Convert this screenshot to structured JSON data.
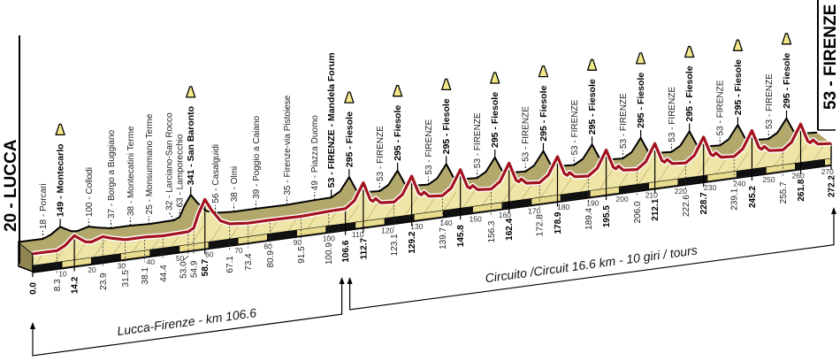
{
  "chart_data": {
    "type": "area",
    "title": "",
    "start_label": "20 - LUCCA",
    "finish_label": "53 - FIRENZE",
    "x_range": [
      0,
      272.2
    ],
    "x_unit": "km",
    "y_unit": "m",
    "grid": false,
    "tick_step": 10,
    "colors": {
      "ridge": "#b3a86c",
      "face": "#efe5a6",
      "route": "#a3121d",
      "band_dark": "#111111",
      "band_light": "#eadc8e",
      "climb": "#f3e98a"
    },
    "profile": [
      [
        0,
        20
      ],
      [
        4,
        19
      ],
      [
        8.3,
        18
      ],
      [
        11,
        60
      ],
      [
        14.2,
        149
      ],
      [
        16,
        110
      ],
      [
        18,
        70
      ],
      [
        20,
        60
      ],
      [
        23.9,
        100
      ],
      [
        27,
        70
      ],
      [
        31.5,
        37
      ],
      [
        38.1,
        38
      ],
      [
        44.4,
        25
      ],
      [
        50,
        30
      ],
      [
        53.0,
        32
      ],
      [
        54.9,
        63
      ],
      [
        56.5,
        200
      ],
      [
        58.7,
        341
      ],
      [
        61,
        220
      ],
      [
        64,
        100
      ],
      [
        67.1,
        56
      ],
      [
        73.4,
        38
      ],
      [
        80.9,
        39
      ],
      [
        91.5,
        35
      ],
      [
        100.9,
        49
      ],
      [
        106.6,
        53
      ],
      [
        109.6,
        120
      ],
      [
        112.7,
        295
      ],
      [
        115.1,
        110
      ],
      [
        116.0,
        90
      ],
      [
        116.9,
        115
      ],
      [
        118.6,
        65
      ],
      [
        123.1,
        53
      ],
      [
        126.1,
        120
      ],
      [
        129.2,
        295
      ],
      [
        131.6,
        110
      ],
      [
        132.5,
        90
      ],
      [
        133.4,
        115
      ],
      [
        135.1,
        65
      ],
      [
        139.7,
        53
      ],
      [
        142.7,
        120
      ],
      [
        145.8,
        295
      ],
      [
        148.2,
        110
      ],
      [
        149.1,
        90
      ],
      [
        150.0,
        115
      ],
      [
        151.7,
        65
      ],
      [
        156.3,
        53
      ],
      [
        159.3,
        120
      ],
      [
        162.4,
        295
      ],
      [
        164.8,
        110
      ],
      [
        165.7,
        90
      ],
      [
        166.6,
        115
      ],
      [
        168.3,
        65
      ],
      [
        172.8,
        53
      ],
      [
        175.8,
        120
      ],
      [
        178.9,
        295
      ],
      [
        181.3,
        110
      ],
      [
        182.2,
        90
      ],
      [
        183.1,
        115
      ],
      [
        184.8,
        65
      ],
      [
        189.4,
        53
      ],
      [
        192.4,
        120
      ],
      [
        195.5,
        295
      ],
      [
        197.9,
        110
      ],
      [
        198.8,
        90
      ],
      [
        199.7,
        115
      ],
      [
        201.4,
        65
      ],
      [
        206.0,
        53
      ],
      [
        209.0,
        120
      ],
      [
        212.1,
        295
      ],
      [
        214.5,
        110
      ],
      [
        215.4,
        90
      ],
      [
        216.3,
        115
      ],
      [
        218.0,
        65
      ],
      [
        222.6,
        53
      ],
      [
        225.6,
        120
      ],
      [
        228.7,
        295
      ],
      [
        231.1,
        110
      ],
      [
        232.0,
        90
      ],
      [
        232.9,
        115
      ],
      [
        234.6,
        65
      ],
      [
        239.1,
        53
      ],
      [
        242.1,
        120
      ],
      [
        245.2,
        295
      ],
      [
        247.6,
        110
      ],
      [
        248.5,
        90
      ],
      [
        249.4,
        115
      ],
      [
        251.1,
        65
      ],
      [
        255.7,
        53
      ],
      [
        258.7,
        120
      ],
      [
        261.8,
        295
      ],
      [
        264.2,
        110
      ],
      [
        265.1,
        90
      ],
      [
        266.0,
        115
      ],
      [
        267.7,
        65
      ],
      [
        272.2,
        53
      ]
    ],
    "waypoints": [
      {
        "km": 8.3,
        "alt": 18,
        "label": "18 - Porcari",
        "bold": false,
        "climb": false
      },
      {
        "km": 14.2,
        "alt": 149,
        "label": "149 - Montecarlo",
        "bold": true,
        "climb": true
      },
      {
        "km": 23.9,
        "alt": 100,
        "label": "100 - Collodi",
        "bold": false,
        "climb": false
      },
      {
        "km": 31.5,
        "alt": 37,
        "label": "37 - Borgo a Buggiano",
        "bold": false,
        "climb": false
      },
      {
        "km": 38.1,
        "alt": 38,
        "label": "38 - Montecatini Terme",
        "bold": false,
        "climb": false
      },
      {
        "km": 44.4,
        "alt": 25,
        "label": "25 - Monsummano Terme",
        "bold": false,
        "climb": false
      },
      {
        "km": 53.0,
        "alt": 32,
        "label": "32 - Larciano-San Rocco",
        "bold": false,
        "climb": false
      },
      {
        "km": 54.9,
        "alt": 63,
        "label": "63 - Lamporecchio",
        "bold": false,
        "climb": false
      },
      {
        "km": 58.7,
        "alt": 341,
        "label": "341 - San Baronto",
        "bold": true,
        "climb": true
      },
      {
        "km": 67.1,
        "alt": 56,
        "label": "56 - Casalguidi",
        "bold": false,
        "climb": false
      },
      {
        "km": 73.4,
        "alt": 38,
        "label": "38 - Olmi",
        "bold": false,
        "climb": false
      },
      {
        "km": 80.9,
        "alt": 39,
        "label": "39 - Poggio a Caiano",
        "bold": false,
        "climb": false
      },
      {
        "km": 91.5,
        "alt": 35,
        "label": "35 - Firenze-via Pistoiese",
        "bold": false,
        "climb": false
      },
      {
        "km": 100.9,
        "alt": 49,
        "label": "49 - Piazza Duomo",
        "bold": false,
        "climb": false
      },
      {
        "km": 106.6,
        "alt": 53,
        "label": "53 - FIRENZE - Mandela Forum",
        "bold": true,
        "climb": false
      },
      {
        "km": 112.7,
        "alt": 295,
        "label": "295 - Fiesole",
        "bold": true,
        "climb": true
      },
      {
        "km": 123.1,
        "alt": 53,
        "label": "53 - FIRENZE",
        "bold": false,
        "climb": false
      },
      {
        "km": 129.2,
        "alt": 295,
        "label": "295 - Fiesole",
        "bold": true,
        "climb": true
      },
      {
        "km": 139.7,
        "alt": 53,
        "label": "53 - FIRENZE",
        "bold": false,
        "climb": false
      },
      {
        "km": 145.8,
        "alt": 295,
        "label": "295 - Fiesole",
        "bold": true,
        "climb": true
      },
      {
        "km": 156.3,
        "alt": 53,
        "label": "53 - FIRENZE",
        "bold": false,
        "climb": false
      },
      {
        "km": 162.4,
        "alt": 295,
        "label": "295 - Fiesole",
        "bold": true,
        "climb": true
      },
      {
        "km": 172.8,
        "alt": 53,
        "label": "53 - FIRENZE",
        "bold": false,
        "climb": false
      },
      {
        "km": 178.9,
        "alt": 295,
        "label": "295 - Fiesole",
        "bold": true,
        "climb": true
      },
      {
        "km": 189.4,
        "alt": 53,
        "label": "53 - FIRENZE",
        "bold": false,
        "climb": false
      },
      {
        "km": 195.5,
        "alt": 295,
        "label": "295 - Fiesole",
        "bold": true,
        "climb": true
      },
      {
        "km": 206.0,
        "alt": 53,
        "label": "53 - FIRENZE",
        "bold": false,
        "climb": false
      },
      {
        "km": 212.1,
        "alt": 295,
        "label": "295 - Fiesole",
        "bold": true,
        "climb": true
      },
      {
        "km": 222.6,
        "alt": 53,
        "label": "53 - FIRENZE",
        "bold": false,
        "climb": false
      },
      {
        "km": 228.7,
        "alt": 295,
        "label": "295 - Fiesole",
        "bold": true,
        "climb": true
      },
      {
        "km": 239.1,
        "alt": 53,
        "label": "53 - FIRENZE",
        "bold": false,
        "climb": false
      },
      {
        "km": 245.2,
        "alt": 295,
        "label": "295 - Fiesole",
        "bold": true,
        "climb": true
      },
      {
        "km": 255.7,
        "alt": 53,
        "label": "53 - FIRENZE",
        "bold": false,
        "climb": false
      },
      {
        "km": 261.8,
        "alt": 295,
        "label": "295 - Fiesole",
        "bold": true,
        "climb": true
      }
    ],
    "km_marks": [
      {
        "km": 0,
        "label": "0.0",
        "bold": true
      },
      {
        "km": 8.3,
        "label": "8.3",
        "bold": false
      },
      {
        "km": 14.2,
        "label": "14.2",
        "bold": true
      },
      {
        "km": 23.9,
        "label": "23.9",
        "bold": false
      },
      {
        "km": 31.5,
        "label": "31.5",
        "bold": false
      },
      {
        "km": 38.1,
        "label": "38.1",
        "bold": false
      },
      {
        "km": 44.4,
        "label": "44.4",
        "bold": false
      },
      {
        "km": 53.0,
        "label": "53.0",
        "bold": false
      },
      {
        "km": 54.9,
        "label": "54.9",
        "bold": false
      },
      {
        "km": 58.7,
        "label": "58.7",
        "bold": true
      },
      {
        "km": 67.1,
        "label": "67.1",
        "bold": false
      },
      {
        "km": 73.4,
        "label": "73.4",
        "bold": false
      },
      {
        "km": 80.9,
        "label": "80.9",
        "bold": false
      },
      {
        "km": 91.5,
        "label": "91.5",
        "bold": false
      },
      {
        "km": 100.9,
        "label": "100.9",
        "bold": false
      },
      {
        "km": 106.6,
        "label": "106.6",
        "bold": true
      },
      {
        "km": 112.7,
        "label": "112.7",
        "bold": true
      },
      {
        "km": 123.1,
        "label": "123.1",
        "bold": false
      },
      {
        "km": 129.2,
        "label": "129.2",
        "bold": true
      },
      {
        "km": 139.7,
        "label": "139.7",
        "bold": false
      },
      {
        "km": 145.8,
        "label": "145.8",
        "bold": true
      },
      {
        "km": 156.3,
        "label": "156.3",
        "bold": false
      },
      {
        "km": 162.4,
        "label": "162.4",
        "bold": true
      },
      {
        "km": 172.8,
        "label": "172.8",
        "bold": false
      },
      {
        "km": 178.9,
        "label": "178.9",
        "bold": true
      },
      {
        "km": 189.4,
        "label": "189.4",
        "bold": false
      },
      {
        "km": 195.5,
        "label": "195.5",
        "bold": true
      },
      {
        "km": 206.0,
        "label": "206.0",
        "bold": false
      },
      {
        "km": 212.1,
        "label": "212.1",
        "bold": true
      },
      {
        "km": 222.6,
        "label": "222.6",
        "bold": false
      },
      {
        "km": 228.7,
        "label": "228.7",
        "bold": true
      },
      {
        "km": 239.1,
        "label": "239.1",
        "bold": false
      },
      {
        "km": 245.2,
        "label": "245.2",
        "bold": true
      },
      {
        "km": 255.7,
        "label": "255.7",
        "bold": false
      },
      {
        "km": 261.8,
        "label": "261.8",
        "bold": true
      },
      {
        "km": 272.2,
        "label": "272.2",
        "bold": true
      }
    ],
    "sections": [
      {
        "label": "Lucca-Firenze - km 106.6",
        "from": 0,
        "to": 106.6
      },
      {
        "label": "Circuito /Circuit 16.6 km - 10 giri / tours",
        "from": 106.6,
        "to": 272.2
      }
    ]
  }
}
